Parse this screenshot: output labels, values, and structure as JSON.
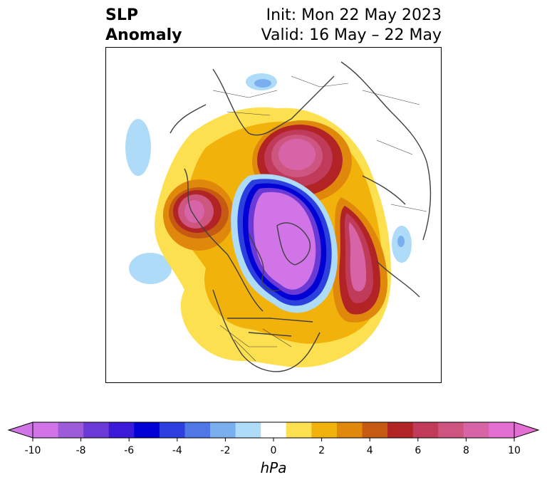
{
  "title": {
    "left_line1": "SLP",
    "left_line2": "Anomaly",
    "right_line1": "Init: Mon 22 May 2023",
    "right_line2": "Valid: 16 May – 22 May"
  },
  "colorbar": {
    "unit": "hPa",
    "ticks": [
      "-10",
      "-8",
      "-6",
      "-4",
      "-2",
      "0",
      "2",
      "4",
      "6",
      "8",
      "10"
    ],
    "levels": [
      -10,
      -9,
      -8,
      -7,
      -6,
      -5,
      -4,
      -3,
      -2,
      -1,
      1,
      2,
      3,
      4,
      5,
      6,
      7,
      8,
      9,
      10
    ],
    "colors": [
      "#d174e8",
      "#9c5cd9",
      "#6b3ad6",
      "#3b19d8",
      "#0000d4",
      "#2a3fde",
      "#4f78e6",
      "#7aafef",
      "#aedcf8",
      "#ffffff",
      "#fde04f",
      "#f2b20c",
      "#df880c",
      "#c75a12",
      "#b22325",
      "#c03a5a",
      "#cd5580",
      "#d864a8",
      "#e46fd2"
    ]
  },
  "map": {
    "projection": "polar stereographic, north pole",
    "features": [
      {
        "name": "strong-negative-anomaly-arctic",
        "sign": "negative",
        "peak_hpa": -10
      },
      {
        "name": "positive-anomaly-scandinavia",
        "sign": "positive",
        "peak_hpa": 10
      },
      {
        "name": "positive-anomaly-alaska-bering",
        "sign": "positive",
        "peak_hpa": 10
      },
      {
        "name": "positive-anomaly-east-siberia",
        "sign": "positive",
        "peak_hpa": 10
      },
      {
        "name": "weak-negative-pacific",
        "sign": "negative",
        "peak_hpa": -2
      },
      {
        "name": "weak-negative-atlantic",
        "sign": "negative",
        "peak_hpa": -2
      }
    ]
  }
}
